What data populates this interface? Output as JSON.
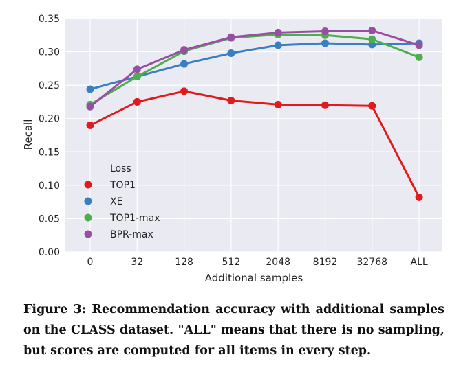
{
  "chart_data": {
    "type": "line",
    "xlabel": "Additional samples",
    "ylabel": "Recall",
    "categories": [
      "0",
      "32",
      "128",
      "512",
      "2048",
      "8192",
      "32768",
      "ALL"
    ],
    "ylim": [
      0,
      0.35
    ],
    "yticks": [
      "0.00",
      "0.05",
      "0.10",
      "0.15",
      "0.20",
      "0.25",
      "0.30",
      "0.35"
    ],
    "grid": true,
    "legend_title": "Loss",
    "legend_position": "lower-left",
    "series": [
      {
        "name": "TOP1",
        "color": "#e31a1c",
        "values": [
          0.19,
          0.225,
          0.241,
          0.227,
          0.221,
          0.22,
          0.219,
          0.082
        ]
      },
      {
        "name": "XE",
        "color": "#3a7fc1",
        "values": [
          0.244,
          0.263,
          0.282,
          0.298,
          0.31,
          0.313,
          0.311,
          0.313
        ]
      },
      {
        "name": "TOP1-max",
        "color": "#4cae4c",
        "values": [
          0.221,
          0.263,
          0.301,
          0.321,
          0.326,
          0.325,
          0.319,
          0.292
        ]
      },
      {
        "name": "BPR-max",
        "color": "#984ea3",
        "values": [
          0.218,
          0.274,
          0.303,
          0.322,
          0.329,
          0.331,
          0.332,
          0.31
        ]
      }
    ]
  },
  "caption": "Figure 3: Recommendation accuracy with additional samples on the CLASS dataset. \"ALL\" means that there is no sampling, but scores are computed for all items in every step."
}
